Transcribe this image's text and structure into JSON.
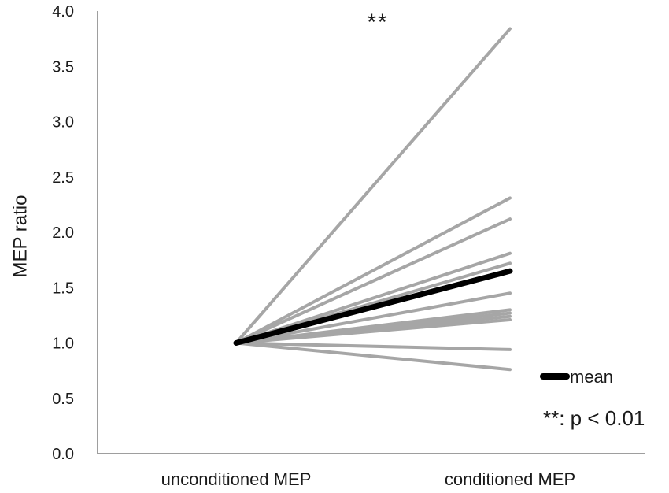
{
  "chart_data": {
    "type": "line",
    "title": "",
    "xlabel": "",
    "ylabel": "MEP ratio",
    "categories": [
      "unconditioned MEP",
      "conditioned MEP"
    ],
    "ylim": [
      0.0,
      4.0
    ],
    "yticks": [
      "0.0",
      "0.5",
      "1.0",
      "1.5",
      "2.0",
      "2.5",
      "3.0",
      "3.5",
      "4.0"
    ],
    "grid": false,
    "series": [
      {
        "values": [
          1.0,
          3.84
        ]
      },
      {
        "values": [
          1.0,
          2.31
        ]
      },
      {
        "values": [
          1.0,
          2.12
        ]
      },
      {
        "values": [
          1.0,
          1.81
        ]
      },
      {
        "values": [
          1.0,
          1.72
        ]
      },
      {
        "values": [
          1.0,
          1.45
        ]
      },
      {
        "values": [
          1.0,
          1.3
        ]
      },
      {
        "values": [
          1.0,
          1.27
        ]
      },
      {
        "values": [
          1.0,
          1.24
        ]
      },
      {
        "values": [
          1.0,
          1.21
        ]
      },
      {
        "values": [
          1.0,
          0.94
        ]
      },
      {
        "values": [
          1.0,
          0.76
        ]
      },
      {
        "name": "mean",
        "values": [
          1.0,
          1.65
        ],
        "highlight": true
      }
    ],
    "colors": {
      "subject": "#a6a6a6",
      "mean": "#000000"
    },
    "legend": {
      "label": "mean",
      "placement": "bottom-right"
    },
    "annotations": {
      "significance": "**",
      "note": "**: p < 0.01"
    }
  }
}
